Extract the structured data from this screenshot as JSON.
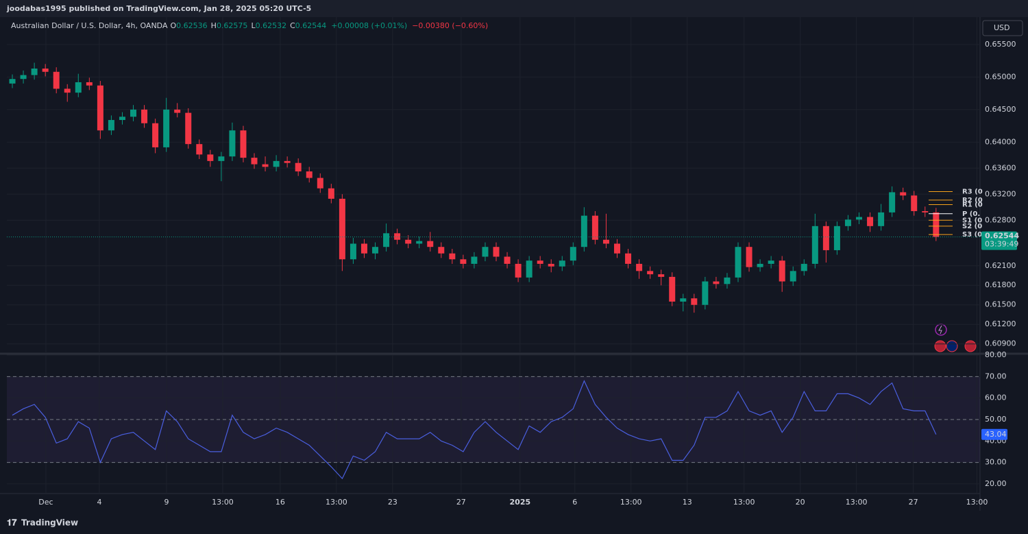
{
  "header": {
    "published": "joodabas1995 published on TradingView.com, Jan 28, 2025 05:20 UTC-5"
  },
  "footer": {
    "brand": "TradingView"
  },
  "chart_data": [
    {
      "type": "candlestick",
      "symbol": "Australian Dollar / U.S. Dollar, 4h, OANDA",
      "ohlc_legend": [
        {
          "label": "O",
          "value": "0.62536"
        },
        {
          "label": "H",
          "value": "0.62575"
        },
        {
          "label": "L",
          "value": "0.62532"
        },
        {
          "label": "C",
          "value": "0.62544"
        }
      ],
      "change": "+0.00008 (+0.01%)",
      "day_change": "−0.00380 (−0.60%)",
      "currency": "USD",
      "up_color": "#089981",
      "down_color": "#f23645",
      "x": [
        0,
        1,
        2,
        3,
        4,
        5,
        6,
        7,
        8,
        9,
        10,
        11,
        12,
        13,
        14,
        15,
        16,
        17,
        18,
        19,
        20,
        21,
        22,
        23,
        24,
        25,
        26,
        27,
        28,
        29,
        30,
        31,
        32,
        33,
        34,
        35,
        36,
        37,
        38,
        39,
        40,
        41,
        42,
        43,
        44,
        45,
        46,
        47,
        48,
        49,
        50,
        51,
        52,
        53,
        54,
        55,
        56,
        57,
        58,
        59,
        60,
        61,
        62,
        63,
        64,
        65,
        66,
        67,
        68,
        69,
        70,
        71,
        72,
        73,
        74,
        75,
        76,
        77,
        78,
        79,
        80,
        81,
        82,
        83,
        84
      ],
      "open": [
        0.649,
        0.6497,
        0.6503,
        0.6513,
        0.6508,
        0.6482,
        0.6476,
        0.6492,
        0.6487,
        0.6418,
        0.6434,
        0.6439,
        0.645,
        0.6429,
        0.6392,
        0.645,
        0.6445,
        0.6397,
        0.6381,
        0.6371,
        0.6378,
        0.6418,
        0.6376,
        0.6366,
        0.6362,
        0.6371,
        0.6368,
        0.6355,
        0.6345,
        0.6329,
        0.6313,
        0.622,
        0.6244,
        0.6229,
        0.6239,
        0.626,
        0.625,
        0.6244,
        0.6248,
        0.6239,
        0.6229,
        0.622,
        0.6213,
        0.6224,
        0.6239,
        0.6224,
        0.6213,
        0.6192,
        0.6218,
        0.6213,
        0.6209,
        0.6218,
        0.6239,
        0.6287,
        0.625,
        0.6244,
        0.6229,
        0.6213,
        0.6202,
        0.6197,
        0.6193,
        0.6155,
        0.616,
        0.615,
        0.6186,
        0.6182,
        0.6192,
        0.6239,
        0.6208,
        0.6213,
        0.6218,
        0.6186,
        0.6202,
        0.6213,
        0.6271,
        0.6234,
        0.6271,
        0.6281,
        0.6285,
        0.6271,
        0.6292,
        0.6323,
        0.6318,
        0.6294,
        0.6292
      ],
      "high": [
        0.6504,
        0.651,
        0.6522,
        0.652,
        0.6515,
        0.6489,
        0.6505,
        0.6499,
        0.6494,
        0.6441,
        0.6446,
        0.6457,
        0.6457,
        0.6436,
        0.6468,
        0.646,
        0.6452,
        0.6404,
        0.6388,
        0.6385,
        0.643,
        0.6425,
        0.6383,
        0.6378,
        0.638,
        0.6378,
        0.6375,
        0.6362,
        0.6352,
        0.6336,
        0.632,
        0.6253,
        0.6251,
        0.6246,
        0.6275,
        0.6267,
        0.6257,
        0.6255,
        0.6262,
        0.6246,
        0.6236,
        0.6227,
        0.6231,
        0.6246,
        0.6246,
        0.6231,
        0.622,
        0.6225,
        0.6225,
        0.622,
        0.6225,
        0.6246,
        0.63,
        0.6294,
        0.629,
        0.6251,
        0.6236,
        0.622,
        0.6209,
        0.6204,
        0.62,
        0.6167,
        0.6167,
        0.6193,
        0.6193,
        0.6199,
        0.6246,
        0.6246,
        0.622,
        0.6225,
        0.6225,
        0.6209,
        0.622,
        0.629,
        0.6278,
        0.6278,
        0.6288,
        0.6292,
        0.6292,
        0.6305,
        0.6332,
        0.633,
        0.6325,
        0.6301,
        0.6299
      ],
      "low": [
        0.6483,
        0.649,
        0.6496,
        0.6501,
        0.6475,
        0.6462,
        0.6469,
        0.648,
        0.6405,
        0.6411,
        0.6427,
        0.6432,
        0.6422,
        0.6383,
        0.6385,
        0.6438,
        0.639,
        0.6374,
        0.6362,
        0.634,
        0.6371,
        0.6369,
        0.6359,
        0.6355,
        0.6355,
        0.6361,
        0.6348,
        0.6338,
        0.6322,
        0.6306,
        0.6202,
        0.6213,
        0.6222,
        0.622,
        0.6232,
        0.6243,
        0.6237,
        0.6237,
        0.6232,
        0.6222,
        0.6213,
        0.6206,
        0.6206,
        0.6217,
        0.6217,
        0.6206,
        0.6185,
        0.6185,
        0.6206,
        0.62,
        0.6202,
        0.6211,
        0.6232,
        0.6243,
        0.6237,
        0.6222,
        0.6206,
        0.619,
        0.619,
        0.618,
        0.6148,
        0.614,
        0.6138,
        0.6143,
        0.6175,
        0.6175,
        0.6185,
        0.6201,
        0.6201,
        0.6206,
        0.617,
        0.6179,
        0.6195,
        0.6206,
        0.6215,
        0.6227,
        0.6264,
        0.6274,
        0.6262,
        0.6264,
        0.6285,
        0.6311,
        0.6287,
        0.6285,
        0.6248
      ],
      "close": [
        0.6497,
        0.6503,
        0.6513,
        0.6508,
        0.6482,
        0.6476,
        0.6492,
        0.6487,
        0.6418,
        0.6434,
        0.6439,
        0.645,
        0.6429,
        0.6392,
        0.645,
        0.6445,
        0.6397,
        0.6381,
        0.6371,
        0.6378,
        0.6418,
        0.6376,
        0.6366,
        0.6362,
        0.6371,
        0.6368,
        0.6355,
        0.6345,
        0.6329,
        0.6313,
        0.622,
        0.6244,
        0.6229,
        0.6239,
        0.626,
        0.625,
        0.6244,
        0.6248,
        0.6239,
        0.6229,
        0.622,
        0.6213,
        0.6224,
        0.6239,
        0.6224,
        0.6213,
        0.6192,
        0.6218,
        0.6213,
        0.6209,
        0.6218,
        0.6239,
        0.6287,
        0.625,
        0.6244,
        0.6229,
        0.6213,
        0.6202,
        0.6197,
        0.6193,
        0.6155,
        0.616,
        0.615,
        0.6186,
        0.6182,
        0.6192,
        0.6239,
        0.6208,
        0.6213,
        0.6218,
        0.6186,
        0.6202,
        0.6213,
        0.6271,
        0.6234,
        0.6271,
        0.6281,
        0.6285,
        0.6271,
        0.6292,
        0.6323,
        0.6318,
        0.6294,
        0.6292,
        0.62544
      ],
      "xlim": [
        -0.5,
        88
      ],
      "xticks": [
        {
          "value": 3.05,
          "label": "Dec"
        },
        {
          "value": 7.91,
          "label": "4"
        },
        {
          "value": 14.02,
          "label": "9"
        },
        {
          "value": 19.13,
          "label": "13:00"
        },
        {
          "value": 24.36,
          "label": "16"
        },
        {
          "value": 29.47,
          "label": "13:00"
        },
        {
          "value": 34.58,
          "label": "23"
        },
        {
          "value": 40.81,
          "label": "27"
        },
        {
          "value": 46.17,
          "label": "2025"
        },
        {
          "value": 51.15,
          "label": "6"
        },
        {
          "value": 56.26,
          "label": "13:00"
        },
        {
          "value": 61.37,
          "label": "13"
        },
        {
          "value": 66.54,
          "label": "13:00"
        },
        {
          "value": 71.65,
          "label": "20"
        },
        {
          "value": 76.76,
          "label": "13:00"
        },
        {
          "value": 81.93,
          "label": "27"
        },
        {
          "value": 87.72,
          "label": "13:00"
        }
      ],
      "ylim": [
        0.6076,
        0.6592
      ],
      "yticks": [
        {
          "value": 0.655,
          "label": "0.65500"
        },
        {
          "value": 0.65,
          "label": "0.65000"
        },
        {
          "value": 0.645,
          "label": "0.64500"
        },
        {
          "value": 0.64,
          "label": "0.64000"
        },
        {
          "value": 0.636,
          "label": "0.63600"
        },
        {
          "value": 0.632,
          "label": "0.63200"
        },
        {
          "value": 0.628,
          "label": "0.62800"
        },
        {
          "value": 0.621,
          "label": "0.62100"
        },
        {
          "value": 0.618,
          "label": "0.61800"
        },
        {
          "value": 0.615,
          "label": "0.61500"
        },
        {
          "value": 0.612,
          "label": "0.61200"
        },
        {
          "value": 0.609,
          "label": "0.60900"
        }
      ],
      "grid": true,
      "last_price": 0.62544,
      "countdown": "03:39:49",
      "pivots": [
        {
          "name": "R3 (0",
          "value": 0.6324,
          "color": "#f7a21b"
        },
        {
          "name": "R2 (0",
          "value": 0.6311,
          "color": "#f7a21b"
        },
        {
          "name": "R1 (0",
          "value": 0.6304,
          "color": "#f7a21b"
        },
        {
          "name": "P (0.",
          "value": 0.629,
          "color": "#ffffff"
        },
        {
          "name": "S1 (0",
          "value": 0.628,
          "color": "#f7a21b"
        },
        {
          "name": "S2 (0",
          "value": 0.6271,
          "color": "#f7a21b"
        },
        {
          "name": "S3 (0",
          "value": 0.6258,
          "color": "#f7a21b"
        }
      ]
    },
    {
      "type": "line",
      "color": "#4a5fe0",
      "x": [
        0,
        1,
        2,
        3,
        4,
        5,
        6,
        7,
        8,
        9,
        10,
        11,
        12,
        13,
        14,
        15,
        16,
        17,
        18,
        19,
        20,
        21,
        22,
        23,
        24,
        25,
        26,
        27,
        28,
        29,
        30,
        31,
        32,
        33,
        34,
        35,
        36,
        37,
        38,
        39,
        40,
        41,
        42,
        43,
        44,
        45,
        46,
        47,
        48,
        49,
        50,
        51,
        52,
        53,
        54,
        55,
        56,
        57,
        58,
        59,
        60,
        61,
        62,
        63,
        64,
        65,
        66,
        67,
        68,
        69,
        70,
        71,
        72,
        73,
        74,
        75,
        76,
        77,
        78,
        79,
        80,
        81,
        82,
        83,
        84
      ],
      "values": [
        52,
        55,
        57,
        51,
        39,
        41,
        49,
        46,
        30,
        41,
        43,
        44,
        40,
        36,
        54,
        49,
        41,
        38,
        35,
        35,
        52,
        44,
        41,
        43,
        46,
        44,
        41,
        38,
        33,
        28,
        22.5,
        33,
        31,
        35,
        44,
        41,
        41,
        41,
        44,
        40,
        38,
        35,
        44,
        49,
        44,
        40,
        36,
        47,
        44,
        49,
        51,
        55,
        68,
        57,
        51,
        46,
        43,
        41,
        40,
        41,
        31,
        31,
        38,
        51,
        51,
        54,
        63,
        54,
        52,
        54,
        44,
        51,
        63,
        54,
        54,
        62,
        62,
        60,
        57,
        63,
        67,
        55,
        54,
        54,
        43.04
      ],
      "last_value": 43.04,
      "xlim": [
        -0.5,
        88
      ],
      "ylim": [
        15.5,
        80
      ],
      "yticks": [
        {
          "value": 80,
          "label": "80.00"
        },
        {
          "value": 70,
          "label": "70.00"
        },
        {
          "value": 60,
          "label": "60.00"
        },
        {
          "value": 50,
          "label": "50.00"
        },
        {
          "value": 40,
          "label": "40.00"
        },
        {
          "value": 30,
          "label": "30.00"
        },
        {
          "value": 20,
          "label": "20.00"
        }
      ],
      "levels": [
        70,
        50,
        30
      ],
      "band": [
        30,
        70
      ],
      "grid": true
    }
  ]
}
